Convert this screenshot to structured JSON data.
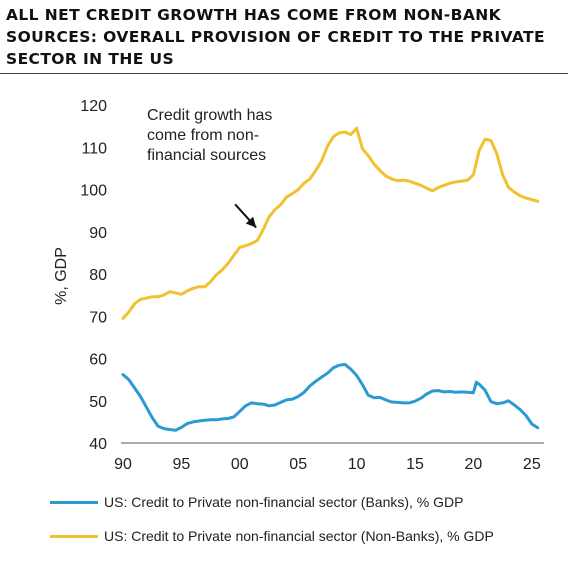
{
  "title": "ALL NET CREDIT GROWTH HAS COME FROM NON-BANK SOURCES: OVERALL PROVISION OF CREDIT TO THE PRIVATE SECTOR IN THE US",
  "chart_data": {
    "type": "line",
    "title": "ALL NET CREDIT GROWTH HAS COME FROM NON-BANK SOURCES: OVERALL PROVISION OF CREDIT TO THE PRIVATE SECTOR IN THE US",
    "ylabel": "%, GDP",
    "xlabel": "",
    "xlim": [
      1990,
      2025.7
    ],
    "ylim": [
      40,
      120
    ],
    "x_ticks": [
      1990,
      1995,
      2000,
      2005,
      2010,
      2015,
      2020,
      2025
    ],
    "x_tick_labels": [
      "90",
      "95",
      "00",
      "05",
      "10",
      "15",
      "20",
      "25"
    ],
    "y_ticks": [
      40,
      50,
      60,
      70,
      80,
      90,
      100,
      110,
      120
    ],
    "grid": false,
    "legend_position": "bottom",
    "annotation": {
      "lines": [
        "Credit growth has",
        "come from non-",
        "financial sources"
      ],
      "arrow_from": [
        1990.0,
        0
      ],
      "text_anchor_x": 1992.0,
      "arrow_start": [
        1999.6,
        96.5
      ],
      "arrow_end": [
        2001.4,
        91.0
      ]
    },
    "series": [
      {
        "name": "US: Credit to Private non-financial sector (Banks), % GDP",
        "color": "#2b9ad3",
        "x": [
          1990.0,
          1990.5,
          1991.0,
          1991.5,
          1992.0,
          1992.5,
          1993.0,
          1993.5,
          1994.0,
          1994.5,
          1995.0,
          1995.5,
          1996.0,
          1996.5,
          1997.0,
          1997.5,
          1998.0,
          1998.5,
          1999.0,
          1999.5,
          2000.0,
          2000.5,
          2001.0,
          2001.5,
          2002.0,
          2002.5,
          2003.0,
          2003.5,
          2004.0,
          2004.5,
          2005.0,
          2005.5,
          2006.0,
          2006.5,
          2007.0,
          2007.5,
          2008.0,
          2008.5,
          2009.0,
          2009.5,
          2010.0,
          2010.5,
          2011.0,
          2011.5,
          2012.0,
          2012.5,
          2013.0,
          2013.5,
          2014.0,
          2014.5,
          2015.0,
          2015.5,
          2016.0,
          2016.5,
          2017.0,
          2017.5,
          2018.0,
          2018.5,
          2019.0,
          2019.5,
          2020.0,
          2020.25,
          2020.5,
          2021.0,
          2021.5,
          2022.0,
          2022.5,
          2023.0,
          2023.5,
          2024.0,
          2024.5,
          2025.0,
          2025.5
        ],
        "y": [
          56.2,
          55.0,
          53.0,
          51.0,
          48.5,
          46.0,
          44.0,
          43.4,
          43.2,
          43.0,
          43.7,
          44.6,
          45.0,
          45.2,
          45.4,
          45.5,
          45.5,
          45.7,
          45.8,
          46.2,
          47.5,
          48.8,
          49.5,
          49.3,
          49.2,
          48.8,
          49.0,
          49.6,
          50.2,
          50.4,
          51.0,
          52.0,
          53.5,
          54.6,
          55.6,
          56.5,
          57.8,
          58.4,
          58.6,
          57.5,
          56.0,
          53.8,
          51.3,
          50.7,
          50.8,
          50.2,
          49.7,
          49.6,
          49.5,
          49.5,
          49.9,
          50.6,
          51.6,
          52.3,
          52.4,
          52.1,
          52.2,
          52.0,
          52.1,
          52.0,
          51.9,
          54.4,
          53.9,
          52.5,
          49.8,
          49.3,
          49.5,
          50.0,
          49.0,
          47.9,
          46.5,
          44.5,
          43.6
        ]
      },
      {
        "name": "US: Credit to Private non-financial sector (Non-Banks), % GDP",
        "color": "#f2c12e",
        "x": [
          1990.0,
          1990.5,
          1991.0,
          1991.5,
          1992.0,
          1992.5,
          1993.0,
          1993.5,
          1994.0,
          1994.5,
          1995.0,
          1995.5,
          1996.0,
          1996.5,
          1997.0,
          1997.5,
          1998.0,
          1998.5,
          1999.0,
          1999.5,
          2000.0,
          2000.5,
          2001.0,
          2001.5,
          2002.0,
          2002.5,
          2003.0,
          2003.5,
          2004.0,
          2004.5,
          2005.0,
          2005.5,
          2006.0,
          2006.5,
          2007.0,
          2007.5,
          2008.0,
          2008.5,
          2009.0,
          2009.5,
          2010.0,
          2010.5,
          2011.0,
          2011.5,
          2012.0,
          2012.5,
          2013.0,
          2013.5,
          2014.0,
          2014.5,
          2015.0,
          2015.5,
          2016.0,
          2016.5,
          2017.0,
          2017.5,
          2018.0,
          2018.5,
          2019.0,
          2019.5,
          2020.0,
          2020.5,
          2021.0,
          2021.5,
          2022.0,
          2022.5,
          2023.0,
          2023.5,
          2024.0,
          2024.5,
          2025.0,
          2025.5
        ],
        "y": [
          69.5,
          71.0,
          73.0,
          74.0,
          74.3,
          74.6,
          74.6,
          75.0,
          75.8,
          75.5,
          75.2,
          76.0,
          76.6,
          77.0,
          77.0,
          78.2,
          79.8,
          81.0,
          82.5,
          84.5,
          86.3,
          86.7,
          87.2,
          87.9,
          90.5,
          93.5,
          95.2,
          96.4,
          98.2,
          99.0,
          100.0,
          101.5,
          102.5,
          104.5,
          106.8,
          110.2,
          112.5,
          113.4,
          113.6,
          113.0,
          114.5,
          109.6,
          108.0,
          106.0,
          104.5,
          103.2,
          102.5,
          102.1,
          102.2,
          102.0,
          101.5,
          101.0,
          100.3,
          99.7,
          100.5,
          101.0,
          101.5,
          101.8,
          102.0,
          102.2,
          103.5,
          109.3,
          111.9,
          111.6,
          108.5,
          103.5,
          100.5,
          99.4,
          98.5,
          98.0,
          97.6,
          97.2
        ]
      }
    ]
  }
}
